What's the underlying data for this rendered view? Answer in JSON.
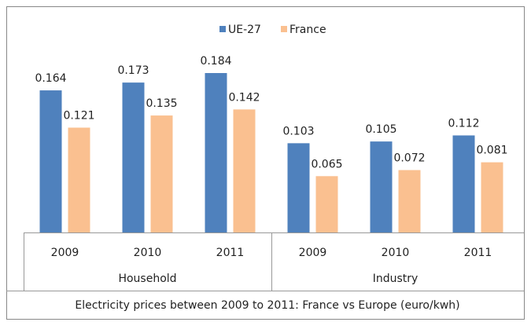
{
  "chart_data": {
    "type": "bar",
    "title": "Electricity prices between 2009 to 2011: France vs Europe (euro/kwh)",
    "groups": [
      {
        "name": "Household",
        "categories": [
          "2009",
          "2010",
          "2011"
        ]
      },
      {
        "name": "Industry",
        "categories": [
          "2009",
          "2010",
          "2011"
        ]
      }
    ],
    "series": [
      {
        "name": "UE-27",
        "color": "#4f81bd",
        "values": [
          0.164,
          0.173,
          0.184,
          0.103,
          0.105,
          0.112
        ]
      },
      {
        "name": "France",
        "color": "#fac090",
        "values": [
          0.121,
          0.135,
          0.142,
          0.065,
          0.072,
          0.081
        ]
      }
    ],
    "legend": "top"
  }
}
